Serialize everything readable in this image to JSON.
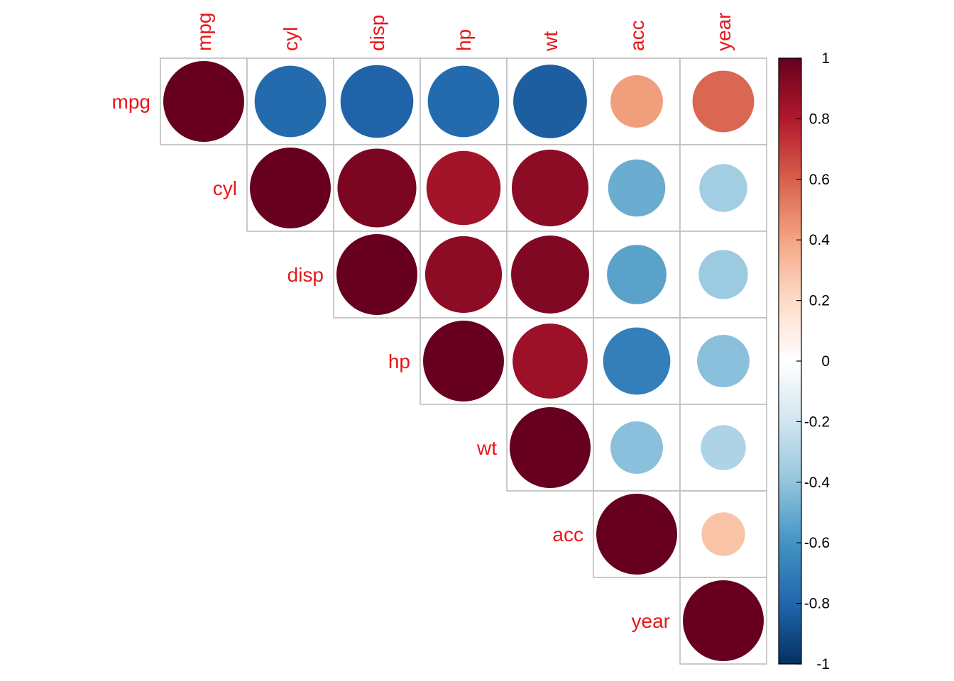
{
  "chart_data": {
    "type": "heatmap",
    "style": "correlation-circles-upper-triangle",
    "variables": [
      "mpg",
      "cyl",
      "disp",
      "hp",
      "wt",
      "acc",
      "year"
    ],
    "matrix": [
      [
        1.0,
        -0.78,
        -0.81,
        -0.78,
        -0.83,
        0.42,
        0.58
      ],
      [
        -0.78,
        1.0,
        0.95,
        0.84,
        0.9,
        -0.5,
        -0.35
      ],
      [
        -0.81,
        0.95,
        1.0,
        0.9,
        0.93,
        -0.54,
        -0.37
      ],
      [
        -0.78,
        0.84,
        0.9,
        1.0,
        0.86,
        -0.69,
        -0.42
      ],
      [
        -0.83,
        0.9,
        0.93,
        0.86,
        1.0,
        -0.42,
        -0.31
      ],
      [
        0.42,
        -0.5,
        -0.54,
        -0.69,
        -0.42,
        1.0,
        0.29
      ],
      [
        0.58,
        -0.35,
        -0.37,
        -0.42,
        -0.31,
        0.29,
        1.0
      ]
    ],
    "colorbar": {
      "range": [
        -1,
        1
      ],
      "ticks": [
        "1",
        "0.8",
        "0.6",
        "0.4",
        "0.2",
        "0",
        "-0.2",
        "-0.4",
        "-0.6",
        "-0.8",
        "-1"
      ],
      "colors": [
        "#67001F",
        "#B2182B",
        "#D6604D",
        "#F4A582",
        "#FDDBC7",
        "#FFFFFF",
        "#D1E5F0",
        "#92C5DE",
        "#4393C3",
        "#2166AC",
        "#053061"
      ]
    },
    "label_color": "#e8161b",
    "grid": true,
    "legend_position": "right"
  }
}
